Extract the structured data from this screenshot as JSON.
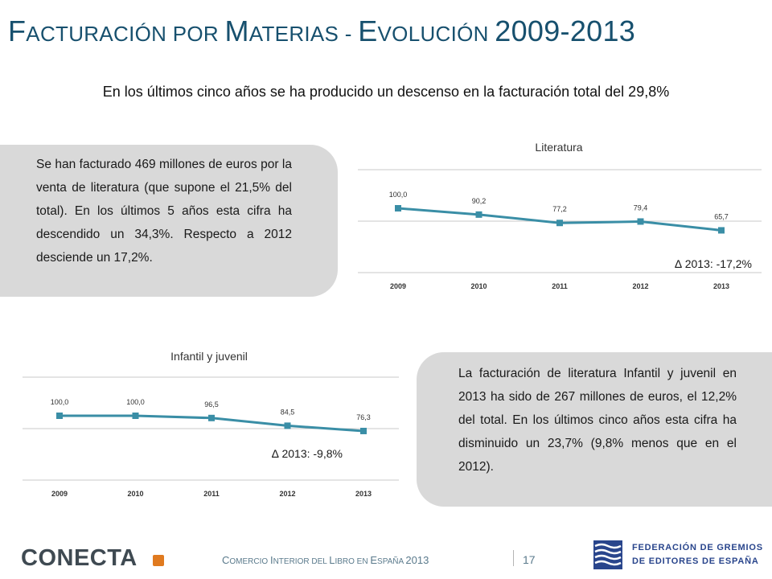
{
  "title": {
    "part1_initial": "F",
    "part1_rest": "acturación por ",
    "part2_initial": "M",
    "part2_rest": "aterias - ",
    "part3_initial": "E",
    "part3_rest": "volución ",
    "years": "2009-2013"
  },
  "subtitle": "En los últimos cinco años se ha producido un descenso en la facturación total del 29,8%",
  "panels": {
    "literatura_text": "Se han facturado 469 millones de euros por la venta de literatura (que supone el 21,5% del total). En los últimos 5 años esta cifra ha descendido un 34,3%. Respecto a 2012 desciende un 17,2%.",
    "infantil_text": "La facturación de literatura Infantil y juvenil en 2013 ha sido de 267 millones de euros, el 12,2% del total. En los últimos cinco años esta cifra ha disminuido un 23,7% (9,8% menos que en el 2012)."
  },
  "chart_data": [
    {
      "type": "line",
      "title": "Literatura",
      "categories": [
        "2009",
        "2010",
        "2011",
        "2012",
        "2013"
      ],
      "values": [
        100.0,
        90.2,
        77.2,
        79.4,
        65.7
      ],
      "value_labels": [
        "100,0",
        "90,2",
        "77,2",
        "79,4",
        "65,7"
      ],
      "annotation": "∆ 2013: -17,2%",
      "grid": true,
      "color": "#3a8ea6"
    },
    {
      "type": "line",
      "title": "Infantil y juvenil",
      "categories": [
        "2009",
        "2010",
        "2011",
        "2012",
        "2013"
      ],
      "values": [
        100.0,
        100.0,
        96.5,
        84.5,
        76.3
      ],
      "value_labels": [
        "100,0",
        "100,0",
        "96,5",
        "84,5",
        "76,3"
      ],
      "annotation": "∆ 2013: -9,8%",
      "grid": true,
      "color": "#3a8ea6"
    }
  ],
  "footer": {
    "logo_text": "CONECTA",
    "caption_c": "C",
    "caption_1": "omercio ",
    "caption_i": "I",
    "caption_2": "nterior del ",
    "caption_l": "L",
    "caption_3": "ibro en ",
    "caption_e": "E",
    "caption_4": "spaña ",
    "caption_year": "2013",
    "page_number": "17",
    "federation_line1": "FEDERACIÓN DE GREMIOS",
    "federation_line2": "DE EDITORES DE ESPAÑA"
  },
  "colors": {
    "title": "#17506e",
    "series": "#3a8ea6",
    "panel": "#d9d9d9",
    "logo_accent": "#e07a1f",
    "federation": "#29458c"
  }
}
